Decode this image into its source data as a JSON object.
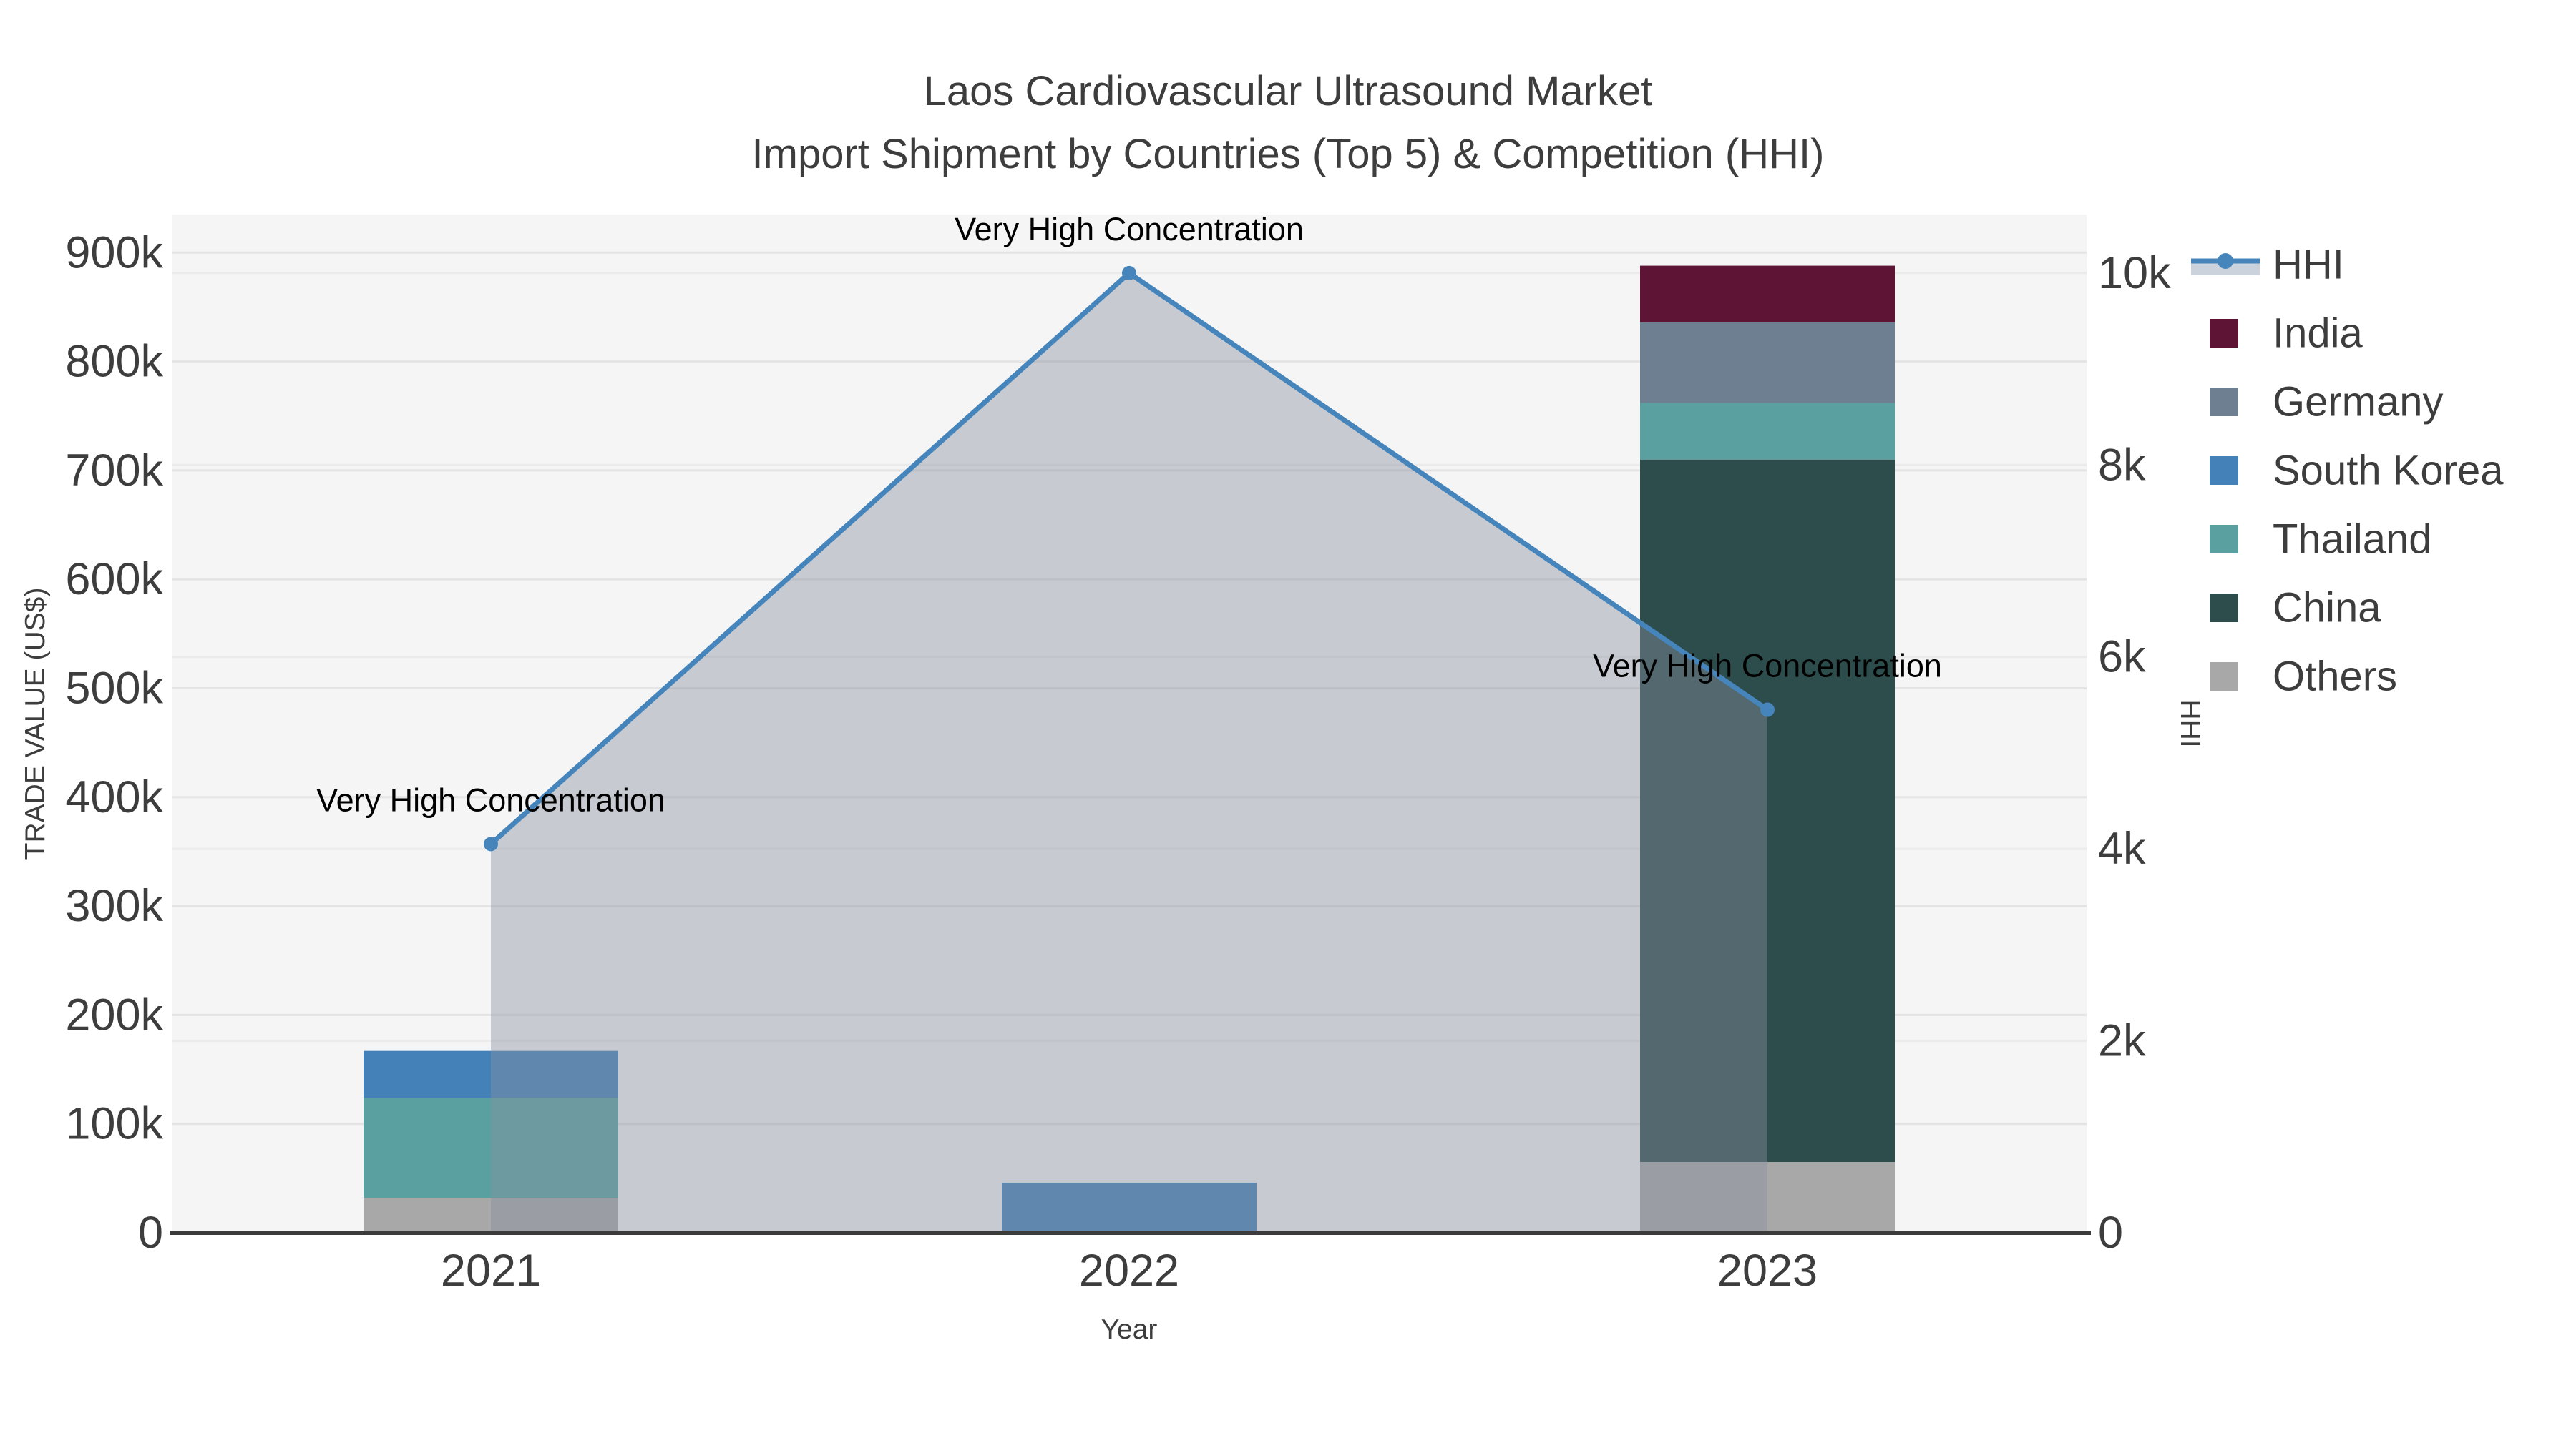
{
  "chart_data": {
    "type": "bar+line",
    "title": "Laos Cardiovascular Ultrasound Market",
    "subtitle": "Import Shipment by Countries (Top 5) & Competition (HHI)",
    "categories": [
      "2021",
      "2022",
      "2023"
    ],
    "xlabel": "Year",
    "yaxis_left": {
      "title": "TRADE VALUE (US$)",
      "range": [
        0,
        935000
      ],
      "grid": true,
      "ticks": [
        {
          "value": 0,
          "label": "0"
        },
        {
          "value": 100000,
          "label": "100k"
        },
        {
          "value": 200000,
          "label": "200k"
        },
        {
          "value": 300000,
          "label": "300k"
        },
        {
          "value": 400000,
          "label": "400k"
        },
        {
          "value": 500000,
          "label": "500k"
        },
        {
          "value": 600000,
          "label": "600k"
        },
        {
          "value": 700000,
          "label": "700k"
        },
        {
          "value": 800000,
          "label": "800k"
        },
        {
          "value": 900000,
          "label": "900k"
        }
      ]
    },
    "yaxis_right": {
      "title": "HHI",
      "range": [
        0,
        10610
      ],
      "grid": true,
      "ticks": [
        {
          "value": 0,
          "label": "0"
        },
        {
          "value": 2000,
          "label": "2k"
        },
        {
          "value": 4000,
          "label": "4k"
        },
        {
          "value": 6000,
          "label": "6k"
        },
        {
          "value": 8000,
          "label": "8k"
        },
        {
          "value": 10000,
          "label": "10k"
        }
      ]
    },
    "bar_series": [
      {
        "name": "Others",
        "color": "#a8a8a8",
        "values": [
          32000,
          0,
          65000
        ]
      },
      {
        "name": "China",
        "color": "#2d4d4d",
        "values": [
          0,
          0,
          645000
        ]
      },
      {
        "name": "Thailand",
        "color": "#5ba0a0",
        "values": [
          92000,
          0,
          52000
        ]
      },
      {
        "name": "South Korea",
        "color": "#4481b8",
        "values": [
          43000,
          46000,
          0
        ]
      },
      {
        "name": "Germany",
        "color": "#6e7f92",
        "values": [
          0,
          0,
          74000
        ]
      },
      {
        "name": "India",
        "color": "#5e1434",
        "values": [
          0,
          0,
          52000
        ]
      }
    ],
    "line_series": {
      "name": "HHI",
      "color": "#4685bb",
      "area_fill": "rgba(135,146,159,0.42)",
      "values": [
        4050,
        10000,
        5450
      ]
    },
    "annotations": [
      {
        "category": "2021",
        "text": "Very High Concentration"
      },
      {
        "category": "2022",
        "text": "Very High Concentration"
      },
      {
        "category": "2023",
        "text": "Very High Concentration"
      }
    ],
    "legend": [
      {
        "label": "HHI",
        "swatch": "line",
        "color": "#4685bb"
      },
      {
        "label": "India",
        "swatch": "box",
        "color": "#5e1434"
      },
      {
        "label": "Germany",
        "swatch": "box",
        "color": "#6e7f92"
      },
      {
        "label": "South Korea",
        "swatch": "box",
        "color": "#4481b8"
      },
      {
        "label": "Thailand",
        "swatch": "box",
        "color": "#5ba0a0"
      },
      {
        "label": "China",
        "swatch": "box",
        "color": "#2d4d4d"
      },
      {
        "label": "Others",
        "swatch": "box",
        "color": "#a8a8a8"
      }
    ],
    "colors": {
      "paper_bg": "#ffffff",
      "plot_bg": "#f5f5f5",
      "grid_left": "#e4e4e4",
      "grid_right": "#ebebeb",
      "axis_line": "#3b3b3b",
      "text": "#3d3d3d",
      "legend_band": "#ccd2dc"
    }
  }
}
